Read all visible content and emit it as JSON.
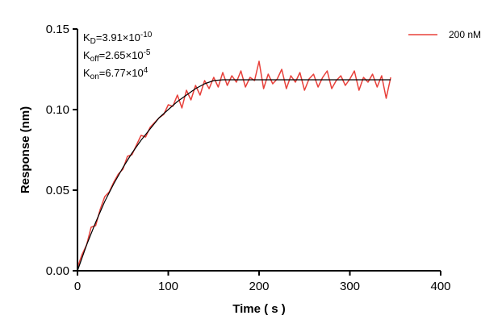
{
  "chart_data": {
    "type": "line",
    "xlabel": "Time ( s )",
    "ylabel": "Response (nm)",
    "xlim": [
      0,
      400
    ],
    "ylim": [
      0,
      0.15
    ],
    "x_ticks": [
      0,
      100,
      200,
      300,
      400
    ],
    "x_tick_labels": [
      "0",
      "100",
      "200",
      "300",
      "400"
    ],
    "y_ticks": [
      0,
      0.05,
      0.1,
      0.15
    ],
    "y_tick_labels": [
      "0.00",
      "0.05",
      "0.10",
      "0.15"
    ],
    "grid": false,
    "legend_position": "top-right",
    "annotations": {
      "kd": {
        "label": "K",
        "sub": "D",
        "value": "=3.91×10",
        "exp": "-10"
      },
      "koff": {
        "label": "K",
        "sub": "off",
        "value": "=2.65×10",
        "exp": "-5"
      },
      "kon": {
        "label": "K",
        "sub": "on",
        "value": "=6.77×10",
        "exp": "4"
      }
    },
    "series": [
      {
        "name": "200 nM",
        "color": "#e8403a",
        "role": "measured",
        "x": [
          0,
          5,
          10,
          15,
          20,
          25,
          30,
          35,
          40,
          45,
          50,
          55,
          60,
          65,
          70,
          75,
          80,
          85,
          90,
          95,
          100,
          105,
          110,
          115,
          120,
          125,
          130,
          135,
          140,
          145,
          150,
          155,
          160,
          165,
          170,
          175,
          180,
          185,
          190,
          195,
          200,
          205,
          210,
          215,
          220,
          225,
          230,
          235,
          240,
          245,
          250,
          255,
          260,
          265,
          270,
          275,
          280,
          285,
          290,
          295,
          300,
          305,
          310,
          315,
          320,
          325,
          330,
          335,
          340,
          345
        ],
        "y": [
          0.002,
          0.01,
          0.016,
          0.027,
          0.028,
          0.038,
          0.046,
          0.049,
          0.055,
          0.06,
          0.063,
          0.071,
          0.072,
          0.078,
          0.084,
          0.083,
          0.089,
          0.092,
          0.095,
          0.097,
          0.103,
          0.102,
          0.109,
          0.101,
          0.112,
          0.106,
          0.115,
          0.109,
          0.118,
          0.113,
          0.12,
          0.114,
          0.123,
          0.115,
          0.121,
          0.117,
          0.124,
          0.114,
          0.12,
          0.118,
          0.13,
          0.113,
          0.122,
          0.116,
          0.119,
          0.125,
          0.113,
          0.121,
          0.117,
          0.123,
          0.112,
          0.119,
          0.122,
          0.114,
          0.12,
          0.124,
          0.113,
          0.118,
          0.121,
          0.115,
          0.119,
          0.124,
          0.112,
          0.12,
          0.117,
          0.122,
          0.114,
          0.121,
          0.107,
          0.12
        ]
      },
      {
        "name": "",
        "color": "#000000",
        "role": "fit",
        "x": [
          0,
          10,
          20,
          30,
          40,
          50,
          60,
          70,
          80,
          90,
          100,
          110,
          120,
          130,
          140,
          150,
          160,
          180,
          200,
          220,
          240,
          260,
          280,
          300,
          320,
          340,
          345
        ],
        "y": [
          0,
          0.016,
          0.03,
          0.043,
          0.054,
          0.064,
          0.073,
          0.081,
          0.088,
          0.095,
          0.1,
          0.105,
          0.109,
          0.113,
          0.116,
          0.118,
          0.1185,
          0.1185,
          0.1185,
          0.1185,
          0.1185,
          0.1185,
          0.1185,
          0.1185,
          0.1185,
          0.1185,
          0.1185
        ]
      }
    ]
  }
}
